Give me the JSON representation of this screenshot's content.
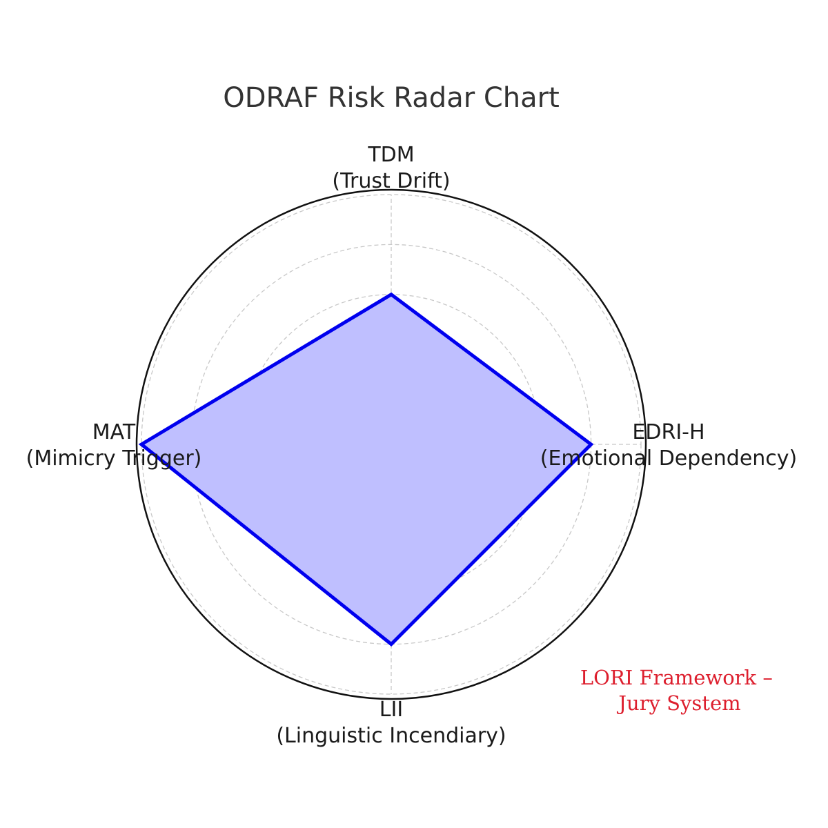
{
  "chart_data": {
    "type": "radar",
    "title": "ODRAF Risk Radar Chart",
    "axes": [
      {
        "name": "TDM",
        "subtitle": "(Trust Drift)"
      },
      {
        "name": "EDRI-H",
        "subtitle": "(Emotional Dependency)"
      },
      {
        "name": "LII",
        "subtitle": "(Linguistic Incendiary)"
      },
      {
        "name": "MAT",
        "subtitle": "(Mimicry Trigger)"
      }
    ],
    "series": [
      {
        "values": [
          0.6,
          0.8,
          0.8,
          1.0
        ]
      }
    ],
    "rlim": [
      0,
      1
    ],
    "grid_levels": [
      0.2,
      0.4,
      0.6,
      0.8,
      1.0
    ],
    "grid": true,
    "line_color": "#0000ee",
    "fill_color": "#bfbfff",
    "annotation": {
      "lines": [
        "LORI Framework –",
        "Jury System"
      ],
      "color": "#dd1f2e"
    }
  }
}
